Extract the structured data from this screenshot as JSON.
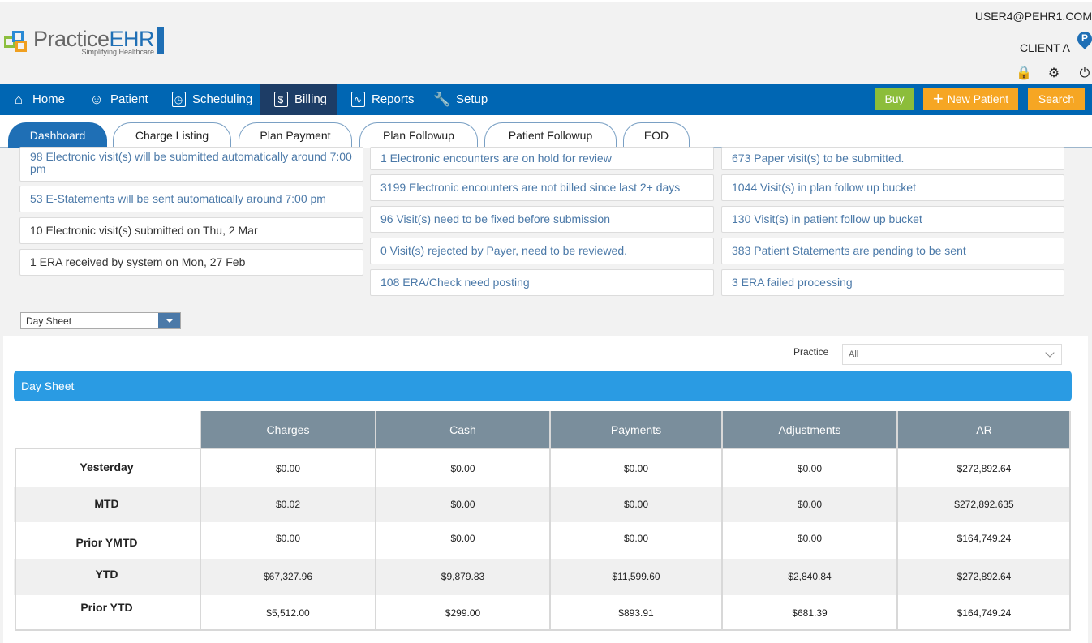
{
  "header": {
    "logo_practice": "Practice",
    "logo_ehr": "EHR",
    "logo_tagline": "Simplifying Healthcare",
    "user_email": "USER4@PEHR1.COM",
    "client": "CLIENT A",
    "pin_letter": "P"
  },
  "nav": {
    "home": "Home",
    "patient": "Patient",
    "scheduling": "Scheduling",
    "billing": "Billing",
    "reports": "Reports",
    "setup": "Setup",
    "buy": "Buy",
    "new_patient": "New Patient",
    "search": "Search"
  },
  "tabs": [
    "Dashboard",
    "Charge Listing",
    "Plan Payment",
    "Plan Followup",
    "Patient Followup",
    "EOD"
  ],
  "alerts": {
    "col1": [
      "98 Electronic visit(s) will be submitted automatically around 7:00 pm",
      "53 E-Statements will be sent automatically around 7:00 pm",
      "10 Electronic visit(s) submitted on Thu, 2 Mar",
      "1 ERA received by system on Mon, 27 Feb"
    ],
    "col2": [
      "1 Electronic encounters are on hold for review",
      "3199 Electronic encounters are not billed since last 2+ days",
      "96 Visit(s) need to be fixed before submission",
      "0 Visit(s) rejected by Payer, need to be reviewed.",
      "108 ERA/Check need posting"
    ],
    "col3": [
      "673 Paper visit(s) to be submitted.",
      "1044 Visit(s) in plan follow up bucket",
      "130 Visit(s) in patient follow up bucket",
      "383 Patient Statements are pending to be sent",
      "3 ERA failed processing"
    ]
  },
  "report_select": "Day Sheet",
  "practice": {
    "label": "Practice",
    "value": "All"
  },
  "day_sheet": {
    "title": "Day Sheet",
    "columns": [
      "Charges",
      "Cash",
      "Payments",
      "Adjustments",
      "AR"
    ],
    "rows": [
      {
        "label": "Yesterday",
        "values": [
          "$0.00",
          "$0.00",
          "$0.00",
          "$0.00",
          "$272,892.64"
        ]
      },
      {
        "label": "MTD",
        "values": [
          "$0.02",
          "$0.00",
          "$0.00",
          "$0.00",
          "$272,892.635"
        ]
      },
      {
        "label": "Prior YMTD",
        "values": [
          "$0.00",
          "$0.00",
          "$0.00",
          "$0.00",
          "$164,749.24"
        ]
      },
      {
        "label": "YTD",
        "values": [
          "$67,327.96",
          "$9,879.83",
          "$11,599.60",
          "$2,840.84",
          "$272,892.64"
        ]
      },
      {
        "label": "Prior YTD",
        "values": [
          "$5,512.00",
          "$299.00",
          "$893.91",
          "$681.39",
          "$164,749.24"
        ]
      }
    ]
  }
}
